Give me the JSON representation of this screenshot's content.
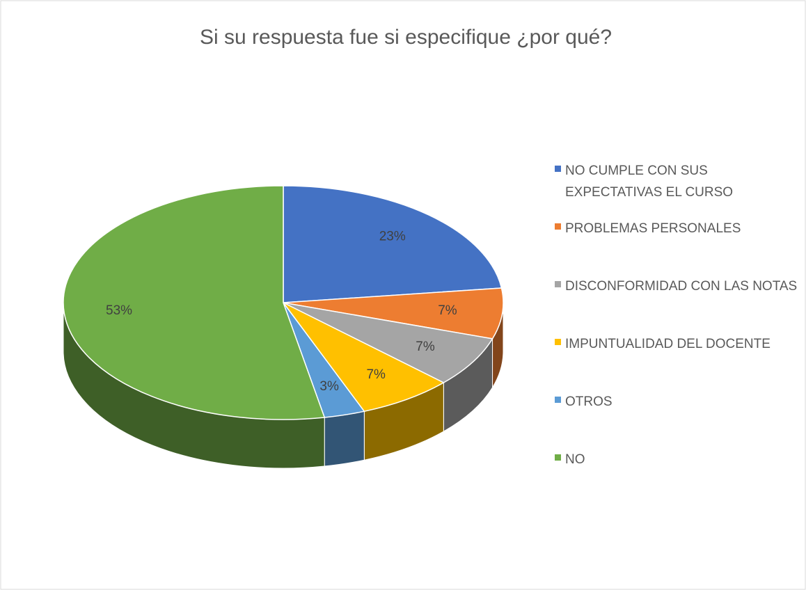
{
  "chart_data": {
    "type": "pie",
    "title": "Si su respuesta fue si especifique ¿por qué?",
    "categories": [
      "NO CUMPLE CON SUS EXPECTATIVAS EL CURSO",
      "PROBLEMAS PERSONALES",
      "DISCONFORMIDAD CON LAS NOTAS",
      "IMPUNTUALIDAD DEL DOCENTE",
      "OTROS",
      "NO"
    ],
    "values": [
      23,
      7,
      7,
      7,
      3,
      53
    ],
    "value_labels": [
      "23%",
      "7%",
      "7%",
      "7%",
      "3%",
      "53%"
    ],
    "colors": [
      "#4472c4",
      "#ed7d31",
      "#a5a5a5",
      "#ffc000",
      "#5b9bd5",
      "#70ad47"
    ]
  }
}
